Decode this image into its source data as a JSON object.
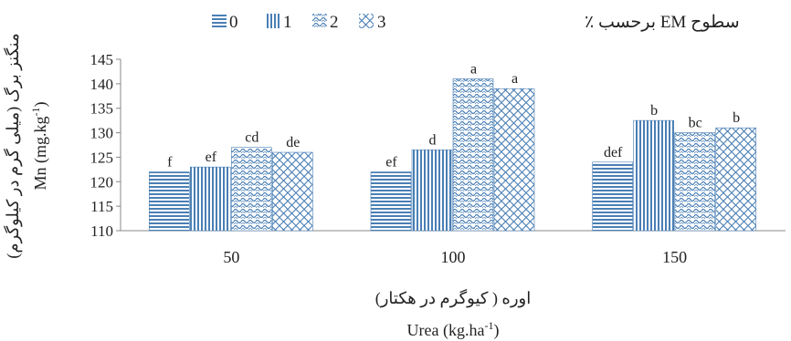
{
  "chart_data": {
    "type": "bar",
    "legend_title": "سطوح EM برحسب ٪",
    "legend_position": "top",
    "categories": [
      "50",
      "100",
      "150"
    ],
    "series": [
      {
        "name": "0",
        "values": [
          122,
          122,
          124
        ],
        "labels": [
          "f",
          "ef",
          "def"
        ],
        "pattern": "horizontal"
      },
      {
        "name": "1",
        "values": [
          123,
          126.5,
          132.5
        ],
        "labels": [
          "ef",
          "d",
          "b"
        ],
        "pattern": "vertical"
      },
      {
        "name": "2",
        "values": [
          127,
          141,
          130
        ],
        "labels": [
          "cd",
          "a",
          "bc"
        ],
        "pattern": "wave"
      },
      {
        "name": "3",
        "values": [
          126,
          139,
          131
        ],
        "labels": [
          "de",
          "a",
          "b"
        ],
        "pattern": "diamond"
      }
    ],
    "xlabel_fa": "اوره ( کیوگرم در هکتار)",
    "xlabel_en": "Urea (kg.ha",
    "xlabel_en_sup": "-1",
    "xlabel_en_end": ")",
    "ylabel_fa": "منگنز برگ (میلی گرم در کیلوگرم)",
    "ylabel_en": "Mn (mg.kg",
    "ylabel_en_sup": "-1",
    "ylabel_en_end": ")",
    "y_ticks": [
      110,
      115,
      120,
      125,
      130,
      135,
      140,
      145
    ],
    "ylim": [
      110,
      145
    ],
    "grid": false,
    "bar_color": "#4a7fb5"
  }
}
